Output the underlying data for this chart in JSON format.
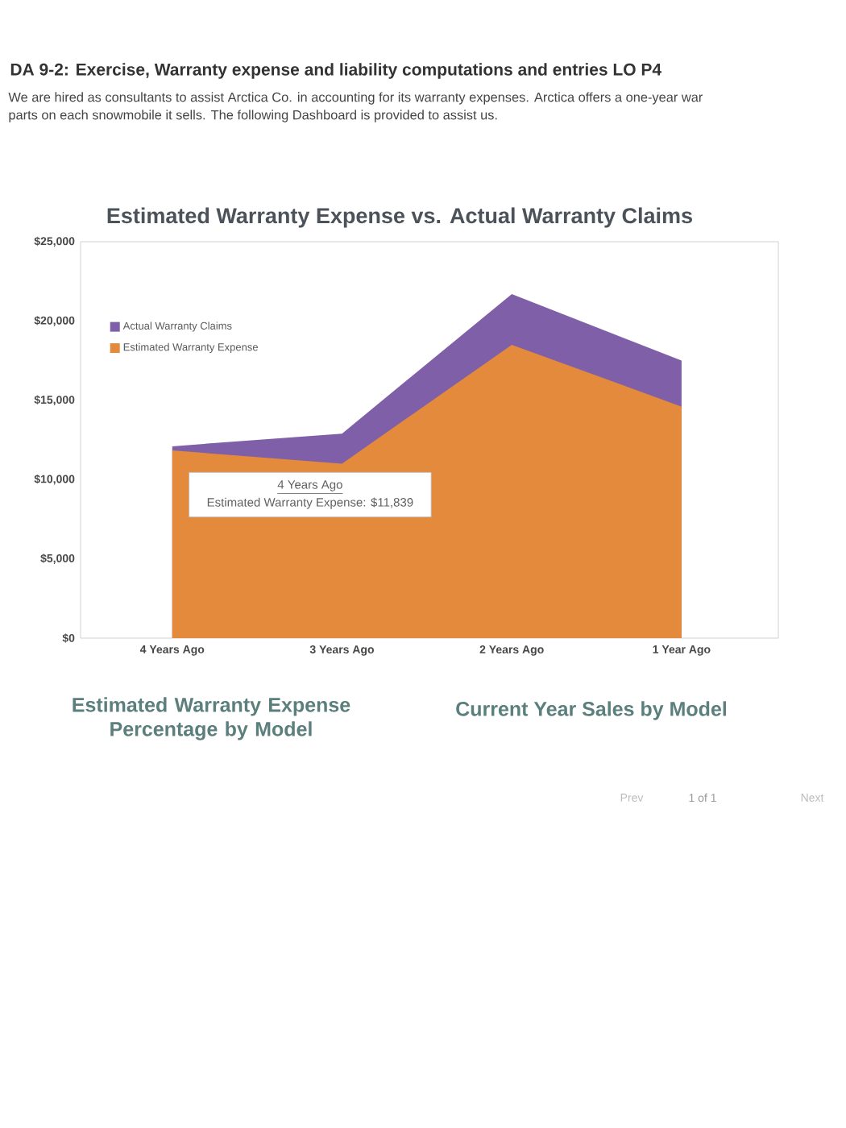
{
  "chart_data": {
    "type": "area",
    "title": "Estimated Warranty Expense vs. Actual Warranty Claims",
    "categories": [
      "4 Years Ago",
      "3 Years Ago",
      "2 Years Ago",
      "1 Year Ago"
    ],
    "series": [
      {
        "name": "Actual Warranty Claims",
        "color": "#7e5fa8",
        "values": [
          12100,
          12900,
          21700,
          17500
        ]
      },
      {
        "name": "Estimated Warranty Expense",
        "color": "#e48a3c",
        "values": [
          11839,
          11000,
          18500,
          14600
        ]
      }
    ],
    "ylim": [
      0,
      25000
    ],
    "yticks": [
      {
        "value": 0,
        "label": "$0"
      },
      {
        "value": 5000,
        "label": "$5,000"
      },
      {
        "value": 10000,
        "label": "$10,000"
      },
      {
        "value": 15000,
        "label": "$15,000"
      },
      {
        "value": 20000,
        "label": "$20,000"
      },
      {
        "value": 25000,
        "label": "$25,000"
      }
    ],
    "legend": "top left",
    "annotations": [
      "DA 9-2: Exercise, Warranty expense and liability computations and entries LO P4",
      "We are hired as consultants to assist Arctica Co. in accounting for its warranty expenses. Arctica offers a one-year war",
      "parts on each snowmobile it sells. The following Dashboard is provided to assist us.",
      "4 Years Ago",
      "Estimated Warranty Expense: $11,839",
      "Estimated Warranty Expense Percentage by Model",
      "Current Year Sales by Model",
      "Prev",
      "1 of 1",
      "Next"
    ]
  }
}
